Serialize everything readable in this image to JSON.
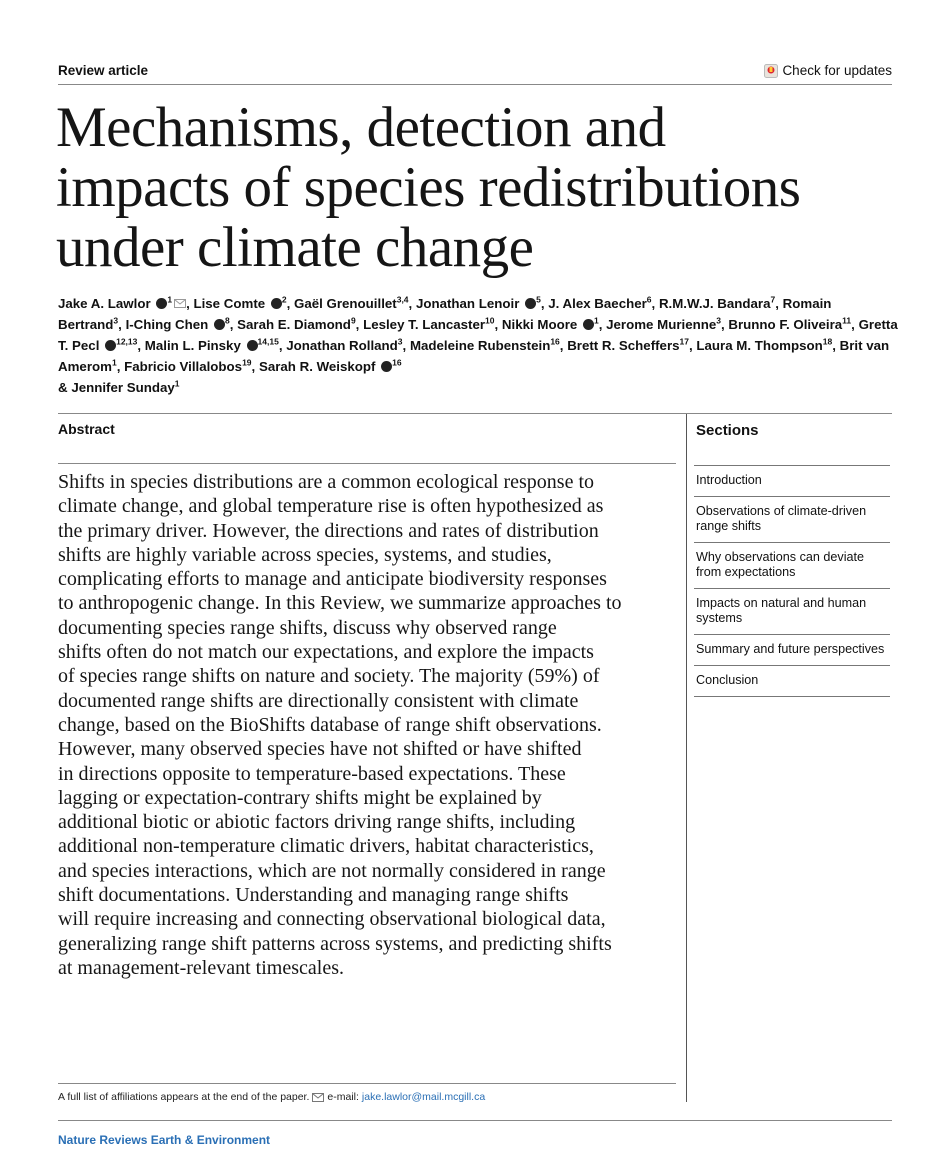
{
  "header": {
    "label": "Review article",
    "updates": "Check for updates"
  },
  "title": {
    "lines": [
      "Mechanisms, detection and",
      "impacts of species redistributions",
      "under climate change"
    ]
  },
  "authors": {
    "separator": ",",
    "conjunction": "&",
    "list": [
      {
        "name": "Jake A. Lawlor",
        "orcid": true,
        "sup": "1",
        "email": true
      },
      {
        "name": "Lise Comte",
        "orcid": true,
        "sup": "2"
      },
      {
        "name": "Gaël Grenouillet",
        "orcid": false,
        "sup": "3,4"
      },
      {
        "name": "Jonathan Lenoir",
        "orcid": true,
        "sup": "5"
      },
      {
        "name": "J. Alex Baecher",
        "orcid": false,
        "sup": "6"
      },
      {
        "name": "R.M.W.J. Bandara",
        "orcid": false,
        "sup": "7"
      },
      {
        "name": "Romain Bertrand",
        "orcid": false,
        "sup": "3"
      },
      {
        "name": "I-Ching Chen",
        "orcid": true,
        "sup": "8"
      },
      {
        "name": "Sarah E. Diamond",
        "orcid": false,
        "sup": "9"
      },
      {
        "name": "Lesley T. Lancaster",
        "orcid": false,
        "sup": "10"
      },
      {
        "name": "Nikki Moore",
        "orcid": true,
        "sup": "1"
      },
      {
        "name": "Jerome Murienne",
        "orcid": false,
        "sup": "3"
      },
      {
        "name": "Brunno F. Oliveira",
        "orcid": false,
        "sup": "11"
      },
      {
        "name": "Gretta T. Pecl",
        "orcid": true,
        "sup": "12,13"
      },
      {
        "name": "Malin L. Pinsky",
        "orcid": true,
        "sup": "14,15"
      },
      {
        "name": "Jonathan Rolland",
        "orcid": false,
        "sup": "3"
      },
      {
        "name": "Madeleine Rubenstein",
        "orcid": false,
        "sup": "16"
      },
      {
        "name": "Brett R. Scheffers",
        "orcid": false,
        "sup": "17"
      },
      {
        "name": "Laura M. Thompson",
        "orcid": false,
        "sup": "18"
      },
      {
        "name": "Brit van Amerom",
        "orcid": false,
        "sup": "1"
      },
      {
        "name": "Fabricio Villalobos",
        "orcid": false,
        "sup": "19"
      },
      {
        "name": "Sarah R. Weiskopf",
        "orcid": true,
        "sup": "16"
      },
      {
        "name": "Jennifer Sunday",
        "orcid": false,
        "sup": "1"
      }
    ]
  },
  "abstract": {
    "heading": "Abstract",
    "lines": [
      "Shifts in species distributions are a common ecological response to",
      "climate change, and global temperature rise is often hypothesized as",
      "the primary driver. However, the directions and rates of distribution",
      "shifts are highly variable across species, systems, and studies,",
      "complicating efforts to manage and anticipate biodiversity responses",
      "to anthropogenic change. In this Review, we summarize approaches to",
      "documenting species range shifts, discuss why observed range",
      "shifts often do not match our expectations, and explore the impacts",
      "of species range shifts on nature and society. The majority (59%) of",
      "documented range shifts are directionally consistent with climate",
      "change, based on the BioShifts database of range shift observations.",
      "However, many observed species have not shifted or have shifted",
      "in directions opposite to temperature-based expectations. These",
      "lagging or expectation-contrary shifts might be explained by",
      "additional biotic or abiotic factors driving range shifts, including",
      "additional non-temperature climatic drivers, habitat characteristics,",
      "and species interactions, which are not normally considered in range",
      "shift documentations. Understanding and managing range shifts",
      "will require increasing and connecting observational biological data,",
      "generalizing range shift patterns across systems, and predicting shifts",
      "at management-relevant timescales."
    ]
  },
  "sections": {
    "heading": "Sections",
    "items": [
      "Introduction",
      "Observations of climate-driven range shifts",
      "Why observations can deviate from expectations",
      "Impacts on natural and human systems",
      "Summary and future perspectives",
      "Conclusion"
    ]
  },
  "footnote": {
    "text": "A full list of affiliations appears at the end of the paper.",
    "email_label": "e-mail:",
    "email": "jake.lawlor@mail.mcgill.ca"
  },
  "footer": {
    "journal": "Nature Reviews Earth & Environment"
  }
}
